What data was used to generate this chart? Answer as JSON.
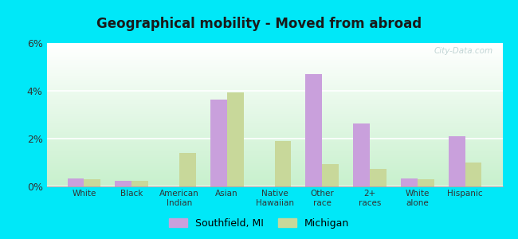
{
  "title": "Geographical mobility - Moved from abroad",
  "categories": [
    "White",
    "Black",
    "American\nIndian",
    "Asian",
    "Native\nHawaiian",
    "Other\nrace",
    "2+\nraces",
    "White\nalone",
    "Hispanic"
  ],
  "southfield_values": [
    0.35,
    0.25,
    0.0,
    3.65,
    0.0,
    4.7,
    2.65,
    0.35,
    2.1
  ],
  "michigan_values": [
    0.3,
    0.25,
    1.4,
    3.95,
    1.9,
    0.95,
    0.75,
    0.3,
    1.0
  ],
  "southfield_color": "#c9a0dc",
  "michigan_color": "#c8d89a",
  "ylim": [
    0,
    6
  ],
  "yticks": [
    0,
    2,
    4,
    6
  ],
  "ytick_labels": [
    "0%",
    "2%",
    "4%",
    "6%"
  ],
  "bar_width": 0.35,
  "legend_southfield": "Southfield, MI",
  "legend_michigan": "Michigan",
  "outer_bg": "#00e8f8",
  "watermark": "City-Data.com"
}
